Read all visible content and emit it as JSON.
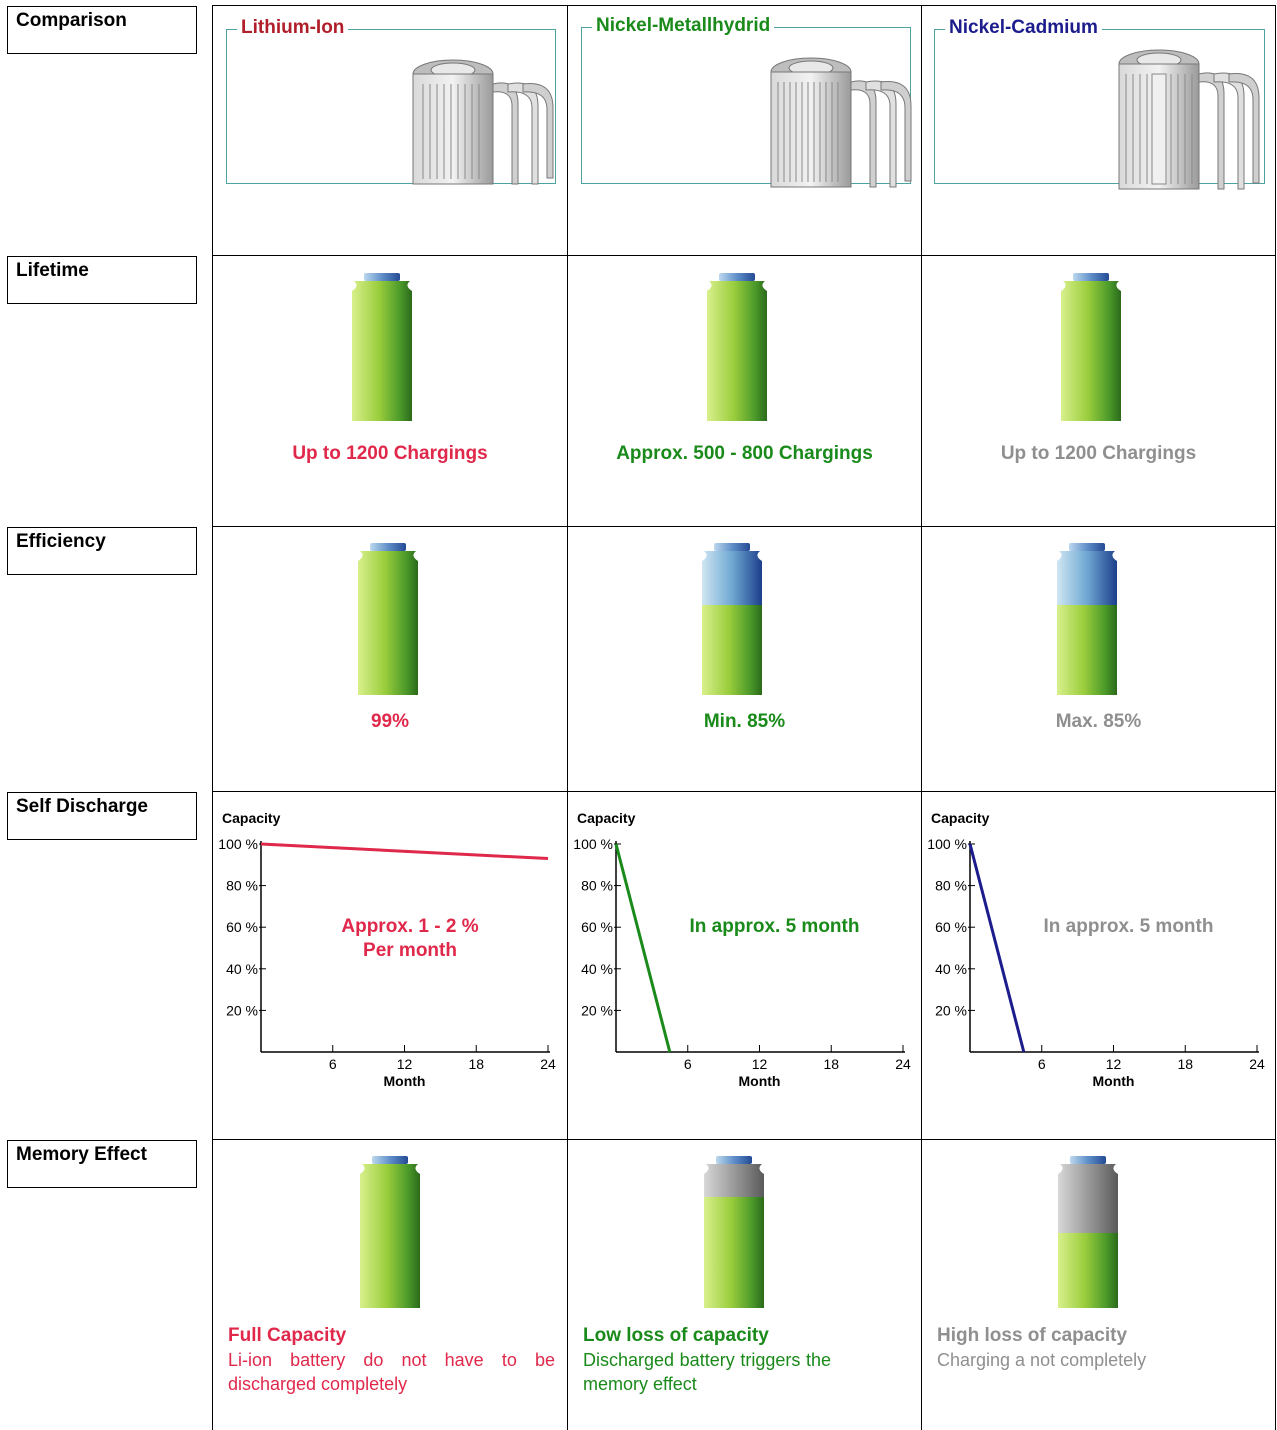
{
  "colors": {
    "lithium": "#e0284b",
    "lithium_title": "#b01e2a",
    "nimh": "#1a8a1a",
    "nicd_title": "#1c1c8c",
    "nicd_line": "#1c1c8c",
    "grey": "#8f8f8f",
    "frame": "#4da3a0"
  },
  "rows": {
    "comparison": "Comparison",
    "lifetime": "Lifetime",
    "efficiency": "Efficiency",
    "self_discharge": "Self Discharge",
    "memory_effect": "Memory Effect"
  },
  "columns": [
    {
      "title": "Lithium-Ion",
      "lifetime": "Up to 1200 Chargings",
      "efficiency": "99%",
      "efficiency_fill": 1.0,
      "discharge_line1": "Approx. 1 - 2 %",
      "discharge_line2": "Per month",
      "memory_head": "Full Capacity",
      "memory_text": "Li-ion battery do not have to be discharged completely",
      "memory_fill": 1.0
    },
    {
      "title": "Nickel-Metallhydrid",
      "lifetime": "Approx. 500 - 800 Chargings",
      "efficiency": "Min. 85%",
      "efficiency_fill": 0.67,
      "discharge_line1": "In approx. 5 month",
      "discharge_line2": "",
      "memory_head": "Low loss of capacity",
      "memory_text": "Discharged battery triggers the memory effect",
      "memory_fill": 0.83
    },
    {
      "title": "Nickel-Cadmium",
      "lifetime": "Up to 1200 Chargings",
      "efficiency": "Max. 85%",
      "efficiency_fill": 0.67,
      "discharge_line1": "In approx. 5 month",
      "discharge_line2": "",
      "memory_head": "High loss of capacity",
      "memory_text": "Charging a not completely",
      "memory_fill": 0.56
    }
  ],
  "chart_data": [
    {
      "type": "line",
      "ylabel": "Capacity",
      "xlabel": "Month",
      "xlim": [
        0,
        24
      ],
      "ylim": [
        0,
        100
      ],
      "xticks": [
        "6",
        "12",
        "18",
        "24"
      ],
      "yticks": [
        "100 %",
        "80 %",
        "60 %",
        "40 %",
        "20 %"
      ],
      "series": [
        {
          "x": [
            0,
            24
          ],
          "y": [
            100,
            93
          ]
        }
      ]
    },
    {
      "type": "line",
      "ylabel": "Capacity",
      "xlabel": "Month",
      "xlim": [
        0,
        24
      ],
      "ylim": [
        0,
        100
      ],
      "xticks": [
        "6",
        "12",
        "18",
        "24"
      ],
      "yticks": [
        "100 %",
        "80 %",
        "60 %",
        "40 %",
        "20 %"
      ],
      "series": [
        {
          "x": [
            0,
            4.5
          ],
          "y": [
            100,
            0
          ]
        }
      ]
    },
    {
      "type": "line",
      "ylabel": "Capacity",
      "xlabel": "Month",
      "xlim": [
        0,
        24
      ],
      "ylim": [
        0,
        100
      ],
      "xticks": [
        "6",
        "12",
        "18",
        "24"
      ],
      "yticks": [
        "100 %",
        "80 %",
        "60 %",
        "40 %",
        "20 %"
      ],
      "series": [
        {
          "x": [
            0,
            4.5
          ],
          "y": [
            100,
            0
          ]
        }
      ]
    }
  ]
}
